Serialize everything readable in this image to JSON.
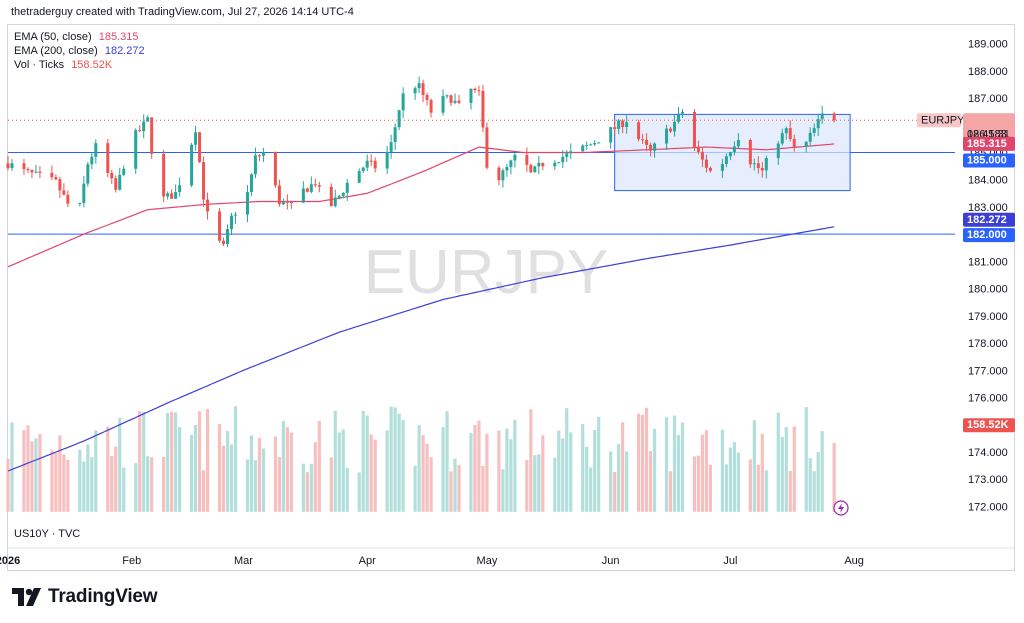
{
  "header": "thetraderguy created with TradingView.com, Jul 27, 2026 14:14 UTC-4",
  "legend": [
    {
      "label": "EMA (50, close)",
      "value": "185.315",
      "color": "#e0466c"
    },
    {
      "label": "EMA (200, close)",
      "value": "182.272",
      "color": "#3b3fd6"
    },
    {
      "label": "Vol · Ticks",
      "value": "158.52K",
      "color": "#ef5350"
    }
  ],
  "watermark": "EURJPY",
  "subchart_label": "US10Y · TVC",
  "brand": "TradingView",
  "colors": {
    "up": "#26a69a",
    "down": "#ef5350",
    "vol_up": "#b2dfdb",
    "vol_down": "#f7bfbf",
    "ema50": "#e0466c",
    "ema200": "#3b3fd6",
    "hline": "#2962ff",
    "rect_fill": "#dbe6fb",
    "rect_stroke": "#2962ff"
  },
  "chart_data": {
    "type": "candlestick",
    "symbol": "EURJPY",
    "y_axis": {
      "min": 171.5,
      "max": 189.5,
      "ticks": [
        "172.000",
        "173.000",
        "174.000",
        "175.000",
        "176.000",
        "177.000",
        "178.000",
        "179.000",
        "180.000",
        "181.000",
        "182.000",
        "183.000",
        "184.000",
        "185.000",
        "186.000",
        "187.000",
        "188.000",
        "189.000"
      ]
    },
    "x_axis": {
      "ticks": [
        {
          "label": "2026",
          "date": "2026-01-01"
        },
        {
          "label": "Feb",
          "date": "2026-02-01"
        },
        {
          "label": "Mar",
          "date": "2026-03-01"
        },
        {
          "label": "Apr",
          "date": "2026-04-01"
        },
        {
          "label": "May",
          "date": "2026-05-01"
        },
        {
          "label": "Jun",
          "date": "2026-06-01"
        },
        {
          "label": "Jul",
          "date": "2026-07-01"
        },
        {
          "label": "Aug",
          "date": "2026-08-01"
        }
      ],
      "start": "2026-01-01",
      "end": "2026-08-15"
    },
    "price_key_close": [
      [
        "2026-01-01",
        184.6
      ],
      [
        "2026-01-05",
        184.3
      ],
      [
        "2026-01-09",
        184.1
      ],
      [
        "2026-01-13",
        183.9
      ],
      [
        "2026-01-16",
        183.1
      ],
      [
        "2026-01-19",
        183.0
      ],
      [
        "2026-01-21",
        184.6
      ],
      [
        "2026-01-23",
        185.2
      ],
      [
        "2026-01-26",
        184.2
      ],
      [
        "2026-01-28",
        183.6
      ],
      [
        "2026-02-01",
        185.5
      ],
      [
        "2026-02-03",
        185.8
      ],
      [
        "2026-02-05",
        186.2
      ],
      [
        "2026-02-07",
        184.0
      ],
      [
        "2026-02-09",
        183.3
      ],
      [
        "2026-02-12",
        183.5
      ],
      [
        "2026-02-14",
        184.3
      ],
      [
        "2026-02-17",
        185.9
      ],
      [
        "2026-02-19",
        183.4
      ],
      [
        "2026-02-21",
        182.0
      ],
      [
        "2026-02-24",
        181.5
      ],
      [
        "2026-02-26",
        182.6
      ],
      [
        "2026-03-02",
        183.5
      ],
      [
        "2026-03-04",
        184.8
      ],
      [
        "2026-03-06",
        185.0
      ],
      [
        "2026-03-08",
        184.2
      ],
      [
        "2026-03-10",
        183.2
      ],
      [
        "2026-03-13",
        183.0
      ],
      [
        "2026-03-16",
        183.6
      ],
      [
        "2026-03-19",
        183.9
      ],
      [
        "2026-03-22",
        182.9
      ],
      [
        "2026-03-25",
        183.4
      ],
      [
        "2026-03-28",
        184.1
      ],
      [
        "2026-04-01",
        184.6
      ],
      [
        "2026-04-04",
        184.4
      ],
      [
        "2026-04-07",
        185.3
      ],
      [
        "2026-04-09",
        186.6
      ],
      [
        "2026-04-11",
        187.6
      ],
      [
        "2026-04-14",
        187.4
      ],
      [
        "2026-04-17",
        186.5
      ],
      [
        "2026-04-19",
        186.9
      ],
      [
        "2026-04-22",
        187.0
      ],
      [
        "2026-04-25",
        186.5
      ],
      [
        "2026-04-27",
        187.3
      ],
      [
        "2026-04-29",
        187.1
      ],
      [
        "2026-05-01",
        184.6
      ],
      [
        "2026-05-03",
        183.9
      ],
      [
        "2026-05-06",
        184.4
      ],
      [
        "2026-05-09",
        185.0
      ],
      [
        "2026-05-12",
        184.2
      ],
      [
        "2026-05-15",
        184.6
      ],
      [
        "2026-05-19",
        184.8
      ],
      [
        "2026-05-23",
        185.0
      ],
      [
        "2026-05-27",
        185.3
      ],
      [
        "2026-05-31",
        185.7
      ],
      [
        "2026-06-02",
        185.9
      ],
      [
        "2026-06-05",
        186.2
      ],
      [
        "2026-06-08",
        185.5
      ],
      [
        "2026-06-11",
        185.0
      ],
      [
        "2026-06-14",
        185.6
      ],
      [
        "2026-06-17",
        186.1
      ],
      [
        "2026-06-19",
        186.5
      ],
      [
        "2026-06-22",
        185.2
      ],
      [
        "2026-06-24",
        184.7
      ],
      [
        "2026-06-27",
        184.1
      ],
      [
        "2026-06-30",
        184.9
      ],
      [
        "2026-07-03",
        185.6
      ],
      [
        "2026-07-06",
        184.7
      ],
      [
        "2026-07-09",
        184.3
      ],
      [
        "2026-07-12",
        185.3
      ],
      [
        "2026-07-15",
        185.8
      ],
      [
        "2026-07-18",
        184.8
      ],
      [
        "2026-07-21",
        185.6
      ],
      [
        "2026-07-23",
        186.1
      ],
      [
        "2026-07-25",
        186.6
      ],
      [
        "2026-07-27",
        186.183
      ]
    ],
    "ema50_key": [
      [
        "2026-01-01",
        180.8
      ],
      [
        "2026-01-20",
        182.0
      ],
      [
        "2026-02-05",
        182.9
      ],
      [
        "2026-02-20",
        183.1
      ],
      [
        "2026-03-05",
        183.2
      ],
      [
        "2026-03-20",
        183.2
      ],
      [
        "2026-04-01",
        183.5
      ],
      [
        "2026-04-15",
        184.3
      ],
      [
        "2026-04-29",
        185.2
      ],
      [
        "2026-05-10",
        185.0
      ],
      [
        "2026-05-25",
        185.0
      ],
      [
        "2026-06-10",
        185.1
      ],
      [
        "2026-06-25",
        185.2
      ],
      [
        "2026-07-10",
        185.1
      ],
      [
        "2026-07-27",
        185.315
      ]
    ],
    "ema200_key": [
      [
        "2026-01-01",
        173.3
      ],
      [
        "2026-01-20",
        174.4
      ],
      [
        "2026-02-10",
        175.8
      ],
      [
        "2026-03-01",
        177.0
      ],
      [
        "2026-03-25",
        178.4
      ],
      [
        "2026-04-20",
        179.6
      ],
      [
        "2026-05-15",
        180.4
      ],
      [
        "2026-06-10",
        181.1
      ],
      [
        "2026-07-01",
        181.6
      ],
      [
        "2026-07-27",
        182.272
      ]
    ],
    "horizontal_lines": [
      185.0,
      182.0
    ],
    "rectangle": {
      "x_start": "2026-06-02",
      "x_end": "2026-07-31",
      "y_top": 186.4,
      "y_bottom": 183.6
    },
    "last_price": 186.183,
    "price_labels": [
      {
        "text": "EURJPY",
        "kind": "symbol"
      },
      {
        "text": "186.183",
        "value": 186.183,
        "kind": "price"
      },
      {
        "text": "02:45:31",
        "value": 186.183,
        "kind": "countdown"
      },
      {
        "text": "185.315",
        "value": 185.315,
        "kind": "ema50"
      },
      {
        "text": "185.000",
        "value": 185.0,
        "kind": "hline"
      },
      {
        "text": "182.272",
        "value": 182.272,
        "kind": "ema200"
      },
      {
        "text": "182.000",
        "value": 182.0,
        "kind": "hline"
      }
    ],
    "volume": {
      "last": "158.52K",
      "pane_min": 171.8,
      "pane_max": 175.9
    }
  }
}
